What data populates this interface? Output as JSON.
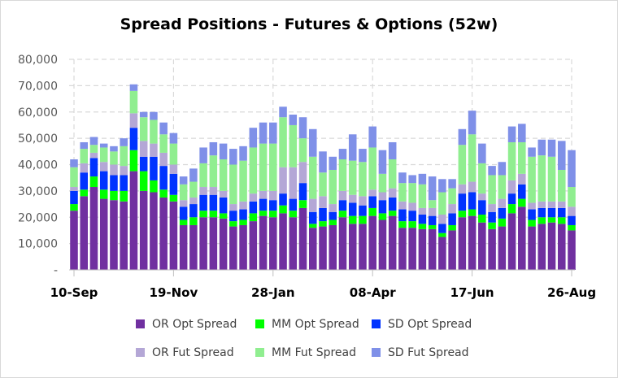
{
  "chart_data": {
    "type": "bar",
    "stacked": true,
    "title": "Spread Positions - Futures & Options (52w)",
    "xlabel": "",
    "ylabel": "",
    "ylim": [
      0,
      80000
    ],
    "yticks": [
      0,
      10000,
      20000,
      30000,
      40000,
      50000,
      60000,
      70000,
      80000
    ],
    "ytick_labels": [
      "-",
      "10,000",
      "20,000",
      "30,000",
      "40,000",
      "50,000",
      "60,000",
      "70,000",
      "80,000"
    ],
    "xtick_labels": [
      {
        "index": 0,
        "label": "10-Sep"
      },
      {
        "index": 10,
        "label": "19-Nov"
      },
      {
        "index": 20,
        "label": "28-Jan"
      },
      {
        "index": 30,
        "label": "08-Apr"
      },
      {
        "index": 40,
        "label": "17-Jun"
      },
      {
        "index": 50,
        "label": "26-Aug"
      }
    ],
    "grid": true,
    "legend_position": "bottom",
    "categories_count": 51,
    "series": [
      {
        "name": "OR  Opt Spread",
        "color": "#7030a0",
        "values": [
          22500,
          28000,
          31500,
          27000,
          26500,
          26000,
          37500,
          30000,
          29500,
          27500,
          26000,
          17000,
          17000,
          20000,
          20000,
          19500,
          16500,
          17000,
          18500,
          20500,
          20000,
          21500,
          20000,
          23500,
          16000,
          16500,
          17000,
          20000,
          17500,
          17500,
          20500,
          19000,
          20500,
          16000,
          16000,
          15500,
          15500,
          12500,
          15000,
          20000,
          20500,
          18000,
          15500,
          16500,
          21500,
          24000,
          16500,
          17500,
          18000,
          17500,
          15000
        ]
      },
      {
        "name": "MM  Opt Spread",
        "color": "#00ff00",
        "values": [
          2500,
          2500,
          4000,
          3500,
          3500,
          4000,
          8000,
          7500,
          4500,
          3000,
          2500,
          2000,
          3000,
          2500,
          2500,
          2000,
          2000,
          2000,
          3000,
          2000,
          2500,
          3000,
          2500,
          3000,
          1500,
          2000,
          2000,
          2500,
          3000,
          3000,
          3000,
          2500,
          2000,
          2500,
          2500,
          2000,
          1500,
          1500,
          2000,
          2500,
          2500,
          3000,
          2500,
          3000,
          3500,
          3000,
          2500,
          2500,
          2000,
          2500,
          2000
        ]
      },
      {
        "name": "SD  Opt Spread",
        "color": "#0033ff",
        "values": [
          5000,
          6500,
          7000,
          7000,
          6000,
          6000,
          8500,
          5500,
          9000,
          9000,
          8000,
          5000,
          5000,
          6000,
          6000,
          6000,
          4000,
          4000,
          4500,
          4500,
          4000,
          4500,
          4500,
          6500,
          4500,
          5000,
          3000,
          4000,
          5000,
          4000,
          4500,
          5000,
          5000,
          4500,
          4000,
          3500,
          3500,
          3500,
          4500,
          6500,
          6500,
          5500,
          4000,
          4000,
          4000,
          5500,
          4000,
          3500,
          3500,
          3500,
          3500
        ]
      },
      {
        "name": "OR  Fut Spread",
        "color": "#b4a7d6",
        "values": [
          1500,
          3500,
          2000,
          3500,
          4000,
          3500,
          5500,
          6000,
          5000,
          5000,
          3500,
          2500,
          2500,
          3000,
          3000,
          2500,
          2500,
          3000,
          3000,
          3000,
          3500,
          10000,
          12000,
          8000,
          5000,
          4500,
          3000,
          3500,
          3000,
          3500,
          2500,
          3000,
          3500,
          3000,
          3000,
          2500,
          3000,
          3500,
          3500,
          3500,
          4000,
          2500,
          3000,
          3500,
          5000,
          4000,
          2500,
          2500,
          2500,
          2500,
          3500
        ]
      },
      {
        "name": "MM  Fut Spread",
        "color": "#90ee90",
        "values": [
          7500,
          5500,
          3000,
          5500,
          5000,
          7500,
          8500,
          9000,
          9000,
          7000,
          8000,
          6000,
          6000,
          9000,
          12000,
          12000,
          15000,
          15500,
          17500,
          18000,
          18000,
          19000,
          16000,
          9000,
          16000,
          9000,
          13000,
          12000,
          13000,
          13000,
          16000,
          7000,
          11000,
          7000,
          7500,
          9000,
          3000,
          8500,
          6000,
          15000,
          18000,
          11500,
          11000,
          9000,
          14500,
          12000,
          17500,
          17500,
          17000,
          12000,
          7500
        ]
      },
      {
        "name": "SD  Fut Spread",
        "color": "#7f90e8",
        "values": [
          3000,
          2500,
          3000,
          1500,
          2000,
          3000,
          2500,
          2000,
          3000,
          4500,
          4000,
          3000,
          5000,
          6000,
          5000,
          6000,
          6000,
          5500,
          7500,
          8000,
          8000,
          4000,
          4000,
          8000,
          10500,
          8000,
          5000,
          4000,
          10000,
          5000,
          8000,
          9000,
          6500,
          4000,
          3000,
          4000,
          9000,
          5000,
          3500,
          6000,
          9000,
          7500,
          3500,
          5000,
          6000,
          7000,
          3500,
          6000,
          6500,
          11000,
          14000
        ]
      }
    ]
  }
}
